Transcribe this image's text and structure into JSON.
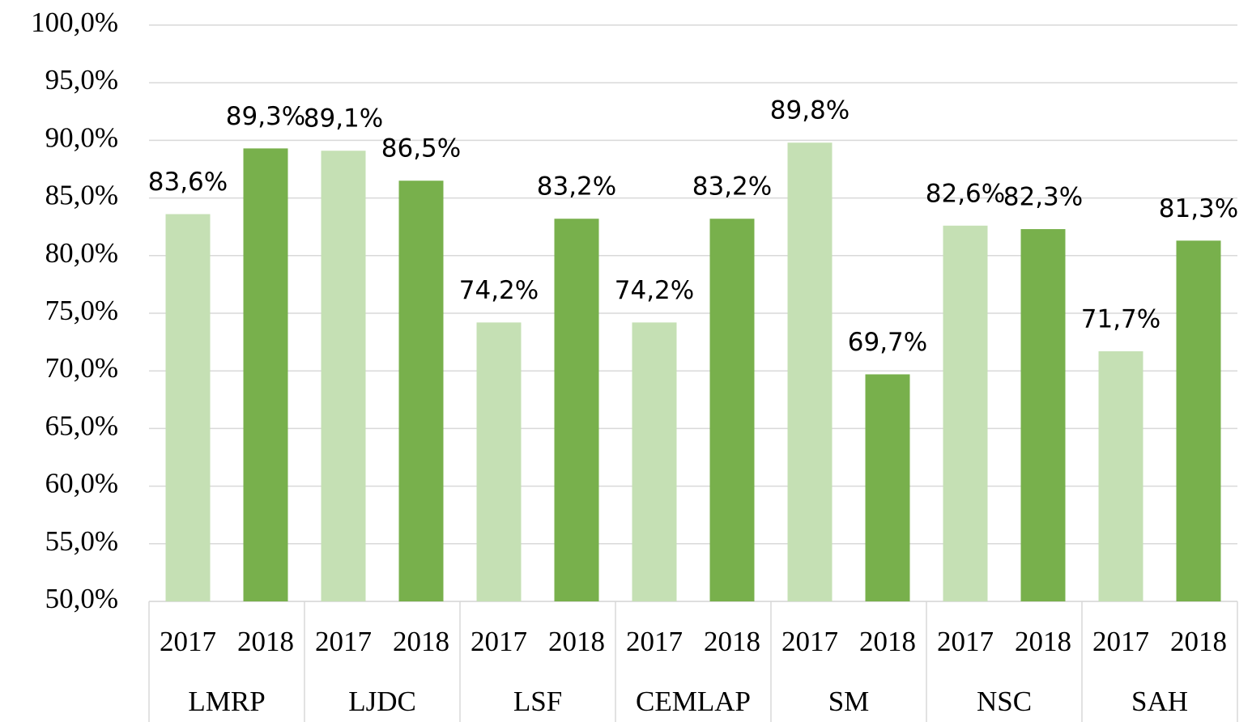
{
  "chart_data": {
    "type": "bar",
    "groups": [
      "LMRP",
      "LJDC",
      "LSF",
      "CEMLAP",
      "SM",
      "NSC",
      "SAH"
    ],
    "series": [
      {
        "name": "2017",
        "color": "#c5e0b4",
        "values": [
          83.6,
          89.1,
          74.2,
          74.2,
          89.8,
          82.6,
          71.7
        ],
        "value_labels": [
          "83,6%",
          "89,1%",
          "74,2%",
          "74,2%",
          "89,8%",
          "82,6%",
          "71,7%"
        ]
      },
      {
        "name": "2018",
        "color": "#78b04c",
        "values": [
          89.3,
          86.5,
          83.2,
          83.2,
          69.7,
          82.3,
          81.3
        ],
        "value_labels": [
          "89,3%",
          "86,5%",
          "83,2%",
          "83,2%",
          "69,7%",
          "82,3%",
          "81,3%"
        ]
      }
    ],
    "ylim": [
      50,
      100
    ],
    "yticks": [
      {
        "value": 50,
        "label": "50,0%"
      },
      {
        "value": 55,
        "label": "55,0%"
      },
      {
        "value": 60,
        "label": "60,0%"
      },
      {
        "value": 65,
        "label": "65,0%"
      },
      {
        "value": 70,
        "label": "70,0%"
      },
      {
        "value": 75,
        "label": "75,0%"
      },
      {
        "value": 80,
        "label": "80,0%"
      },
      {
        "value": 85,
        "label": "85,0%"
      },
      {
        "value": 90,
        "label": "90,0%"
      },
      {
        "value": 95,
        "label": "95,0%"
      },
      {
        "value": 100,
        "label": "100,0%"
      }
    ],
    "grid": true
  }
}
